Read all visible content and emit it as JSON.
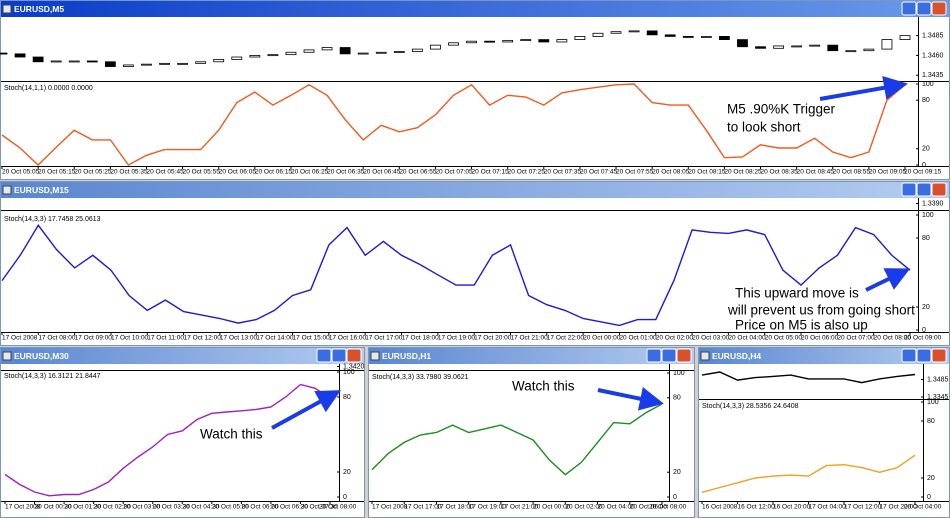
{
  "chart_data": [
    {
      "type": "line",
      "title": "EURUSD,M5",
      "indicator": "Stoch(14,1,1) 0.0000 0.0000",
      "categories": [
        "20 Oct 05:05",
        null,
        "20 Oct 05:15",
        null,
        "20 Oct 05:25",
        null,
        "20 Oct 05:35",
        null,
        "20 Oct 05:45",
        null,
        "20 Oct 05:55",
        null,
        "20 Oct 06:05",
        null,
        "20 Oct 06:15",
        null,
        "20 Oct 06:25",
        null,
        "20 Oct 06:35",
        null,
        "20 Oct 06:45",
        null,
        "20 Oct 06:55",
        null,
        "20 Oct 07:05",
        null,
        "20 Oct 07:15",
        null,
        "20 Oct 07:25",
        null,
        "20 Oct 07:35",
        null,
        "20 Oct 07:45",
        null,
        "20 Oct 07:55",
        null,
        "20 Oct 08:05",
        null,
        "20 Oct 08:15",
        null,
        "20 Oct 08:25",
        null,
        "20 Oct 08:35",
        null,
        "20 Oct 08:45",
        null,
        "20 Oct 08:55",
        null,
        "20 Oct 09:05",
        null,
        "20 Oct 09:15"
      ],
      "series": [
        {
          "color": "#f05a1e",
          "values": [
            37,
            21,
            0,
            22,
            43,
            31,
            31,
            0,
            12,
            19,
            19,
            19,
            43,
            77,
            90,
            74,
            86,
            99,
            86,
            56,
            31,
            49,
            41,
            46,
            62,
            86,
            99,
            74,
            86,
            84,
            74,
            89,
            93,
            96,
            99,
            100,
            77,
            74,
            74,
            43,
            9,
            10,
            25,
            21,
            21,
            33,
            16,
            9,
            16,
            80,
            99
          ]
        }
      ],
      "ylim": [
        0,
        100
      ],
      "yticks": [
        0,
        20,
        80,
        100
      ],
      "price": {
        "type": "candlestick",
        "ylim": [
          1.3429,
          1.3506
        ],
        "yticks": [
          1.3435,
          {
            "value": 1.346,
            "label": "1.3460"
          },
          1.3485
        ],
        "open": [
          1.3463,
          1.3462,
          1.3458,
          1.3452,
          1.3453,
          1.3453,
          1.3452,
          1.3446,
          1.3448,
          1.3449,
          1.345,
          1.345,
          1.3452,
          1.3455,
          1.3458,
          1.346,
          1.3461,
          1.3464,
          1.3467,
          1.347,
          1.3462,
          1.3463,
          1.3464,
          1.3465,
          1.3468,
          1.3473,
          1.3476,
          1.3478,
          1.3477,
          1.3479,
          1.348,
          1.3477,
          1.348,
          1.3484,
          1.3488,
          1.349,
          1.3491,
          1.3486,
          1.3484,
          1.3483,
          1.3484,
          1.348,
          1.3471,
          1.3469,
          1.3472,
          1.3472,
          1.3473,
          1.3466,
          1.3466,
          1.3468,
          1.348
        ],
        "close": [
          1.3462,
          1.3458,
          1.3452,
          1.3453,
          1.3453,
          1.3452,
          1.3446,
          1.3448,
          1.3449,
          1.345,
          1.345,
          1.3452,
          1.3455,
          1.3458,
          1.346,
          1.3461,
          1.3464,
          1.3467,
          1.347,
          1.3462,
          1.3463,
          1.3464,
          1.3465,
          1.3468,
          1.3473,
          1.3476,
          1.3478,
          1.3477,
          1.3479,
          1.348,
          1.3477,
          1.348,
          1.3484,
          1.3488,
          1.349,
          1.3491,
          1.3486,
          1.3484,
          1.3483,
          1.3484,
          1.348,
          1.3471,
          1.3469,
          1.3472,
          1.3472,
          1.3473,
          1.3466,
          1.3466,
          1.3468,
          1.348,
          1.3485
        ]
      },
      "annotations": [
        "M5 .90%K Trigger",
        "to look short"
      ]
    },
    {
      "type": "line",
      "title": "EURUSD,M15",
      "indicator": "Stoch(14,3,3) 17.7458 25.0613",
      "categories": [
        "17 Oct 2008",
        null,
        "17 Oct 08:00",
        null,
        "17 Oct 09:00",
        null,
        "17 Oct 10:00",
        null,
        "17 Oct 11:00",
        null,
        "17 Oct 12:00",
        null,
        "17 Oct 13:00",
        null,
        "17 Oct 14:00",
        null,
        "17 Oct 15:00",
        null,
        "17 Oct 16:00",
        null,
        "17 Oct 17:00",
        null,
        "17 Oct 18:00",
        null,
        "17 Oct 19:00",
        null,
        "17 Oct 20:00",
        null,
        "17 Oct 21:00",
        null,
        "17 Oct 22:00",
        null,
        "20 Oct 00:00",
        null,
        "20 Oct 01:00",
        null,
        "20 Oct 02:00",
        null,
        "20 Oct 03:00",
        null,
        "20 Oct 04:00",
        null,
        "20 Oct 05:00",
        null,
        "20 Oct 06:00",
        null,
        "20 Oct 07:00",
        null,
        "20 Oct 08:00",
        null,
        "20 Oct 09:00"
      ],
      "series": [
        {
          "color": "#1a1ad8",
          "values": [
            43,
            65,
            91,
            70,
            54,
            65,
            52,
            30,
            17,
            26,
            16,
            13,
            10,
            6,
            9,
            17,
            30,
            35,
            74,
            89,
            65,
            77,
            65,
            57,
            48,
            39,
            39,
            65,
            74,
            30,
            22,
            17,
            10,
            7,
            4,
            9,
            9,
            43,
            87,
            85,
            84,
            87,
            83,
            52,
            39,
            54,
            65,
            89,
            83,
            65,
            52
          ]
        }
      ],
      "ylim": [
        0,
        100
      ],
      "yticks": [
        0,
        20,
        80,
        100
      ],
      "price": {
        "ylim": [
          1.3385,
          1.3395
        ],
        "yticks": [
          {
            "value": 1.339,
            "label": "1.3390"
          }
        ]
      },
      "annotations": [
        "This upward move is",
        "will prevent us from going short",
        " Price on M5 is also up"
      ]
    },
    {
      "type": "line",
      "title": "EURUSD,M30",
      "indicator": "Stoch(14,3,3) 16.3121 21.8447",
      "categories": [
        "17 Oct 2008",
        null,
        "20 Oct 00:30",
        null,
        "20 Oct 01:30",
        null,
        "20 Oct 02:00",
        null,
        "20 Oct 03:00",
        null,
        "20 Oct 03:30",
        null,
        "20 Oct 04:30",
        null,
        "20 Oct 05:00",
        null,
        "20 Oct 06:00",
        null,
        "20 Oct 06:30",
        null,
        "20 Oct 07:30",
        null,
        "20 Oct 08:00"
      ],
      "series": [
        {
          "color": "#a020c8",
          "values": [
            18,
            10,
            4,
            1,
            2,
            2,
            6,
            12,
            23,
            32,
            40,
            50,
            53,
            62,
            67,
            68,
            69,
            70,
            72,
            80,
            90,
            87,
            79
          ]
        }
      ],
      "ylim": [
        0,
        100
      ],
      "yticks": [
        0,
        20,
        80,
        100
      ],
      "price": {
        "ylim": [
          1.3415,
          1.3425
        ],
        "yticks": [
          {
            "value": 1.342,
            "label": "1.3420"
          }
        ]
      },
      "annotations": [
        "Watch this"
      ]
    },
    {
      "type": "line",
      "title": "EURUSD,H1",
      "indicator": "Stoch(14,3,3) 33.7980 39.0621",
      "categories": [
        "17 Oct 2008",
        null,
        "17 Oct 17:00",
        null,
        "17 Oct 18:00",
        null,
        "17 Oct 19:00",
        null,
        "17 Oct 21:00",
        null,
        "20 Oct 00:00",
        null,
        "20 Oct 02:00",
        null,
        "20 Oct 04:00",
        null,
        "20 Oct 06:00",
        null,
        "20 Oct 08:00"
      ],
      "series": [
        {
          "color": "#1e8c1e",
          "values": [
            22,
            35,
            44,
            50,
            52,
            58,
            52,
            55,
            58,
            52,
            46,
            30,
            18,
            28,
            44,
            60,
            59,
            68,
            75
          ]
        }
      ],
      "ylim": [
        0,
        100
      ],
      "yticks": [
        0,
        20,
        80,
        100
      ],
      "annotations": [
        "Watch this"
      ]
    },
    {
      "type": "line",
      "title": "EURUSD,H4",
      "indicator": "Stoch(14,3,3) 28.5356 24.6408",
      "categories": [
        "16 Oct 2008",
        null,
        "16 Oct 12:00",
        null,
        "16 Oct 20:00",
        null,
        "17 Oct 04:00",
        null,
        "17 Oct 12:00",
        null,
        "17 Oct 20:00",
        null,
        "20 Oct 04:00"
      ],
      "series": [
        {
          "color": "#f0a020",
          "values": [
            5,
            10,
            15,
            20,
            22,
            23,
            22,
            33,
            34,
            31,
            26,
            31,
            44
          ]
        }
      ],
      "ylim": [
        0,
        100
      ],
      "yticks": [
        0,
        20,
        80,
        100
      ],
      "price": {
        "type": "line",
        "color": "#000000",
        "ylim": [
          1.3337,
          1.3609
        ],
        "yticks": [
          1.3345,
          1.3485
        ],
        "values": [
          1.352,
          1.3545,
          1.348,
          1.35,
          1.351,
          1.352,
          1.349,
          1.349,
          1.349,
          1.346,
          1.349,
          1.351,
          1.3525
        ]
      }
    }
  ]
}
